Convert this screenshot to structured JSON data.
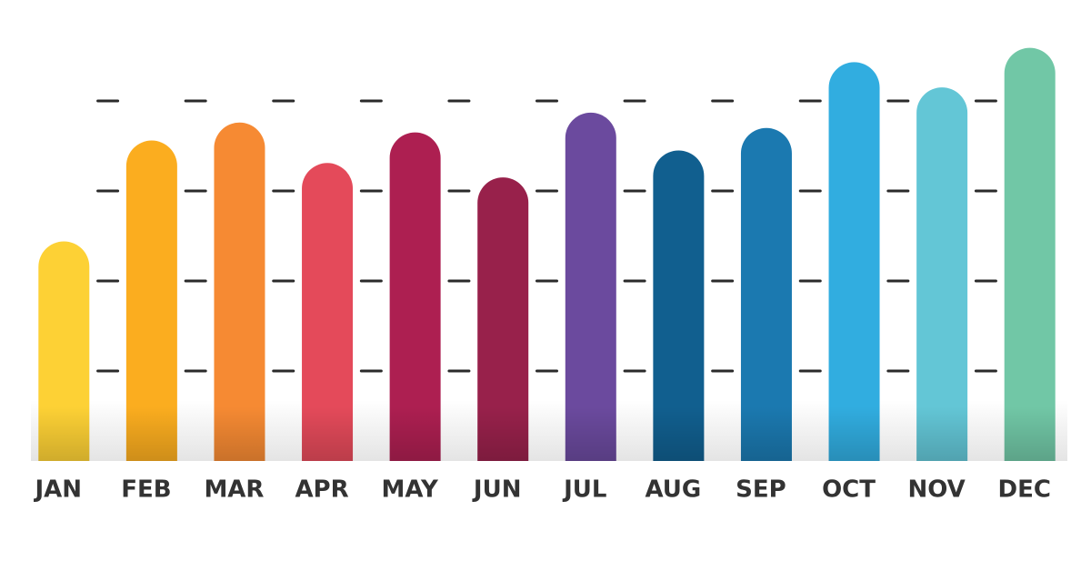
{
  "chart_data": {
    "type": "bar",
    "categories": [
      "JAN",
      "FEB",
      "MAR",
      "APR",
      "MAY",
      "JUN",
      "JUL",
      "AUG",
      "SEP",
      "OCT",
      "NOV",
      "DEC"
    ],
    "values": [
      2.44,
      3.56,
      3.76,
      3.31,
      3.65,
      3.15,
      3.87,
      3.45,
      3.7,
      4.43,
      4.15,
      4.59
    ],
    "colors": [
      "#fdd135",
      "#fbad1f",
      "#f68a33",
      "#e44a5a",
      "#ad1f51",
      "#98214b",
      "#6b4a9e",
      "#115f8f",
      "#1b79b0",
      "#31ade0",
      "#63c6d6",
      "#71c7a6"
    ],
    "ylim": [
      0,
      5
    ],
    "yticks": [
      1,
      2,
      3,
      4
    ],
    "grid": true
  }
}
